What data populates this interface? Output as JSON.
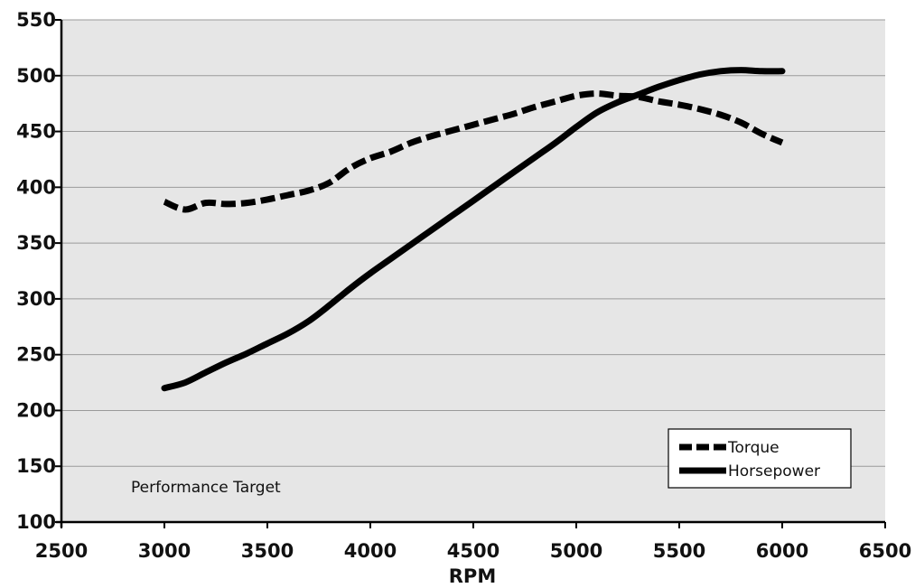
{
  "chart_data": {
    "type": "line",
    "title": "",
    "xlabel": "RPM",
    "ylabel": "",
    "xlim": [
      2500,
      6500
    ],
    "ylim": [
      100,
      550
    ],
    "x_ticks": [
      2500,
      3000,
      3500,
      4000,
      4500,
      5000,
      5500,
      6000,
      6500
    ],
    "y_ticks": [
      100,
      150,
      200,
      250,
      300,
      350,
      400,
      450,
      500,
      550
    ],
    "grid": "horizontal",
    "plot_background": "#e6e6e6",
    "legend_position": "bottom-right",
    "annotation": "Performance Target",
    "series": [
      {
        "name": "Torque",
        "style": "dashed",
        "color": "#000000",
        "points": [
          [
            3000,
            387
          ],
          [
            3100,
            380
          ],
          [
            3200,
            386
          ],
          [
            3300,
            385
          ],
          [
            3400,
            386
          ],
          [
            3500,
            389
          ],
          [
            3600,
            393
          ],
          [
            3700,
            397
          ],
          [
            3800,
            404
          ],
          [
            3900,
            417
          ],
          [
            4000,
            426
          ],
          [
            4100,
            432
          ],
          [
            4200,
            440
          ],
          [
            4300,
            446
          ],
          [
            4400,
            451
          ],
          [
            4500,
            456
          ],
          [
            4600,
            461
          ],
          [
            4700,
            466
          ],
          [
            4800,
            472
          ],
          [
            4900,
            477
          ],
          [
            5000,
            482
          ],
          [
            5100,
            484
          ],
          [
            5200,
            482
          ],
          [
            5300,
            481
          ],
          [
            5400,
            477
          ],
          [
            5500,
            474
          ],
          [
            5600,
            470
          ],
          [
            5700,
            465
          ],
          [
            5800,
            458
          ],
          [
            5900,
            448
          ],
          [
            6000,
            440
          ]
        ]
      },
      {
        "name": "Horsepower",
        "style": "solid",
        "color": "#000000",
        "points": [
          [
            3000,
            220
          ],
          [
            3100,
            225
          ],
          [
            3200,
            234
          ],
          [
            3300,
            243
          ],
          [
            3400,
            251
          ],
          [
            3500,
            260
          ],
          [
            3600,
            269
          ],
          [
            3700,
            280
          ],
          [
            3800,
            294
          ],
          [
            3900,
            309
          ],
          [
            4000,
            323
          ],
          [
            4100,
            336
          ],
          [
            4200,
            349
          ],
          [
            4300,
            362
          ],
          [
            4400,
            375
          ],
          [
            4500,
            388
          ],
          [
            4600,
            401
          ],
          [
            4700,
            414
          ],
          [
            4800,
            427
          ],
          [
            4900,
            440
          ],
          [
            5000,
            454
          ],
          [
            5100,
            467
          ],
          [
            5200,
            476
          ],
          [
            5300,
            483
          ],
          [
            5400,
            490
          ],
          [
            5500,
            496
          ],
          [
            5600,
            501
          ],
          [
            5700,
            504
          ],
          [
            5800,
            505
          ],
          [
            5900,
            504
          ],
          [
            6000,
            504
          ]
        ]
      }
    ]
  }
}
